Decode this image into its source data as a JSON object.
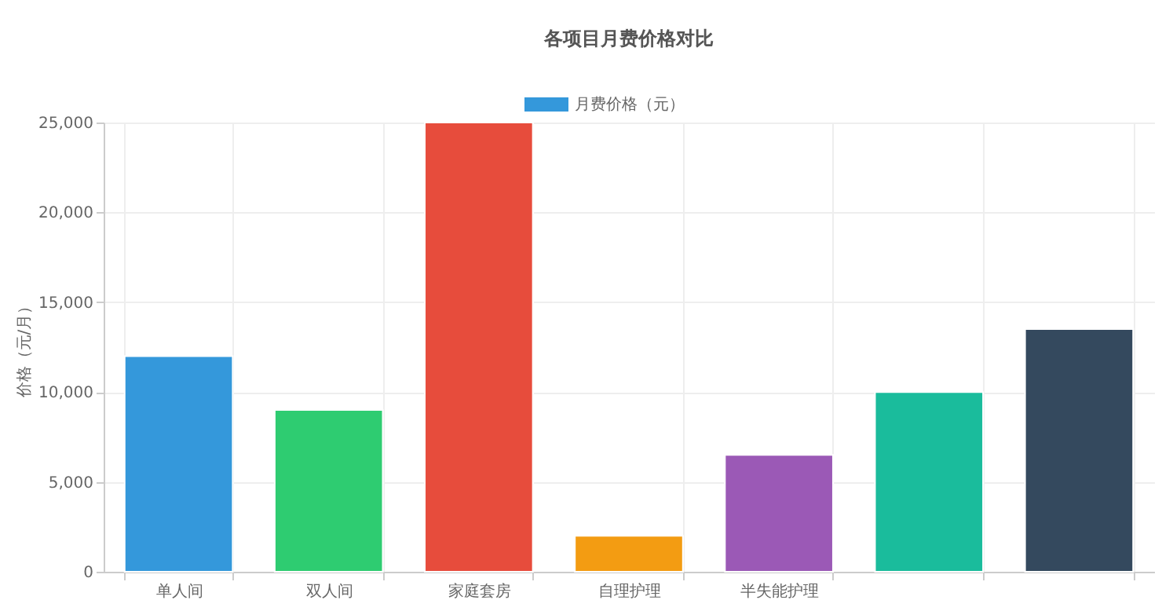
{
  "chart_data": {
    "type": "bar",
    "title": "各项目月费价格对比",
    "ylabel": "价格（元/月）",
    "categories": [
      "单人间",
      "双人间",
      "家庭套房",
      "自理护理",
      "半失能护理",
      null,
      null
    ],
    "series": [
      {
        "name": "月费价格（元）",
        "color": "#3498db",
        "values": [
          12000,
          9000,
          25000,
          2000,
          6500,
          10000,
          13500
        ],
        "colors": [
          "#3498db",
          "#2ecc71",
          "#e74c3c",
          "#f39c12",
          "#9b59b6",
          "#1abc9c",
          "#34495e"
        ]
      }
    ],
    "ylim": [
      0,
      25000
    ],
    "yticks": [
      0,
      {
        "value": 5000,
        "label": "5,000"
      },
      {
        "value": 10000,
        "label": "10,000"
      },
      {
        "value": 15000,
        "label": "15,000"
      },
      {
        "value": 20000,
        "label": "20,000"
      },
      {
        "value": 25000,
        "label": "25,000"
      }
    ],
    "grid": true,
    "legend": "top"
  }
}
